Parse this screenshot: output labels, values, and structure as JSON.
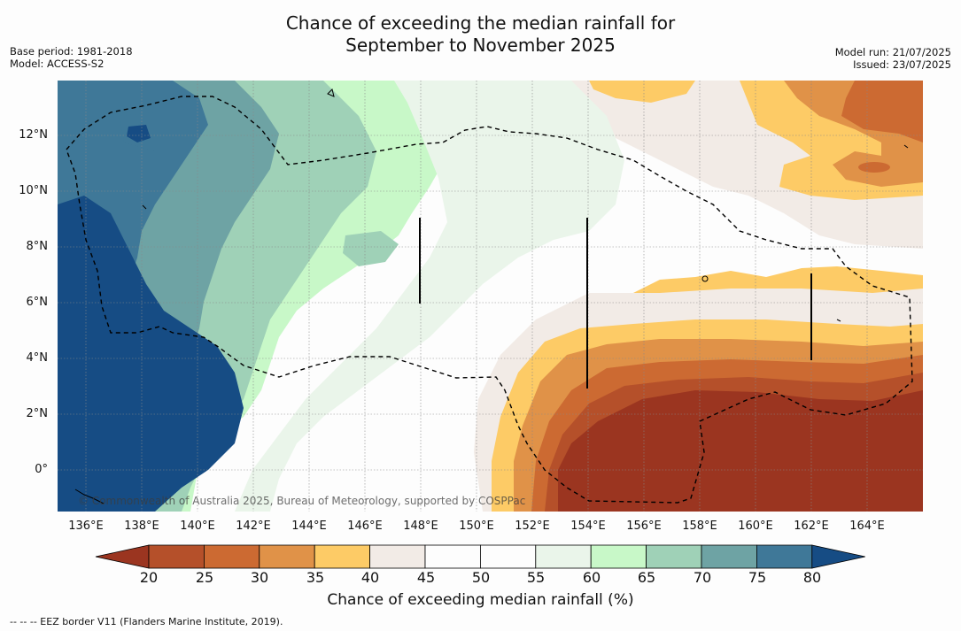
{
  "header": {
    "title_line1": "Chance of exceeding the median rainfall for",
    "title_line2": "September to November 2025",
    "base_period": "Base period: 1981-2018",
    "model": "Model: ACCESS-S2",
    "model_run": "Model run: 21/07/2025",
    "issued": "Issued: 23/07/2025"
  },
  "map": {
    "lon_ticks": [
      "136°E",
      "138°E",
      "140°E",
      "142°E",
      "144°E",
      "146°E",
      "148°E",
      "150°E",
      "152°E",
      "154°E",
      "156°E",
      "158°E",
      "160°E",
      "162°E",
      "164°E"
    ],
    "lat_ticks": [
      "12°N",
      "10°N",
      "8°N",
      "6°N",
      "4°N",
      "2°N",
      "0°"
    ],
    "attribution": "© Commonwealth of Australia 2025, Bureau of Meteorology, supported by COSPPac",
    "fill_colors": {
      "dark_brown": "#9b3520",
      "brown": "#b5502a",
      "orange_brown": "#cc6a32",
      "orange": "#e09248",
      "yellow": "#fdcb66",
      "beige": "#f2ebe6",
      "white": "#fdfdfd",
      "pale_green": "#eaf5ea",
      "light_green": "#c8f8c8",
      "seafoam": "#9fd1b7",
      "teal": "#6ea3a4",
      "steel_blue": "#3f7898",
      "dark_blue": "#164c84"
    }
  },
  "colorbar": {
    "ticks": [
      "20",
      "25",
      "30",
      "35",
      "40",
      "45",
      "50",
      "55",
      "60",
      "65",
      "70",
      "75",
      "80"
    ],
    "label": "Chance of exceeding median rainfall (%)",
    "under_color": "#9b3520",
    "over_color": "#164c84",
    "colors": [
      "#b5502a",
      "#cc6a32",
      "#e09248",
      "#fdcb66",
      "#f2ebe6",
      "#fdfdfd",
      "#fdfdfd",
      "#eaf5ea",
      "#c8f8c8",
      "#9fd1b7",
      "#6ea3a4",
      "#3f7898"
    ]
  },
  "footer": {
    "note": "--  --  -- EEZ border V11 (Flanders Marine Institute, 2019)."
  }
}
